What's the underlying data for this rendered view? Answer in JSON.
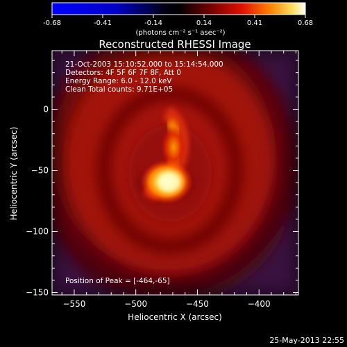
{
  "colorbar": {
    "ticks": [
      "-0.68",
      "-0.41",
      "-0.14",
      "0.14",
      "0.41",
      "0.68"
    ],
    "unit_label": "(photons cm⁻² s⁻¹ asec⁻²)"
  },
  "chart_data": {
    "type": "heatmap",
    "title": "Reconstructed RHESSI Image",
    "xlabel": "Heliocentric X (arcsec)",
    "ylabel": "Heliocentric Y (arcsec)",
    "xlim": [
      -568,
      -368
    ],
    "ylim": [
      -152,
      48
    ],
    "xticks": [
      -550,
      -500,
      -450,
      -400
    ],
    "yticks": [
      -150,
      -100,
      -50,
      0
    ],
    "colormap": "hot",
    "color_range": [
      -0.68,
      0.68
    ],
    "annotations": [
      "21-Oct-2003 15:10:52.000 to 15:14:54.000",
      "Detectors: 4F 5F 6F 7F 8F, Att 0",
      "Energy Range: 6.0 - 12.0 keV",
      "Clean    Total counts: 9.71E+05"
    ],
    "peak_label": "Position of Peak = [-464,-65]",
    "peak": [
      -464,
      -65
    ]
  },
  "footer_timestamp": "25-May-2013 22:55"
}
